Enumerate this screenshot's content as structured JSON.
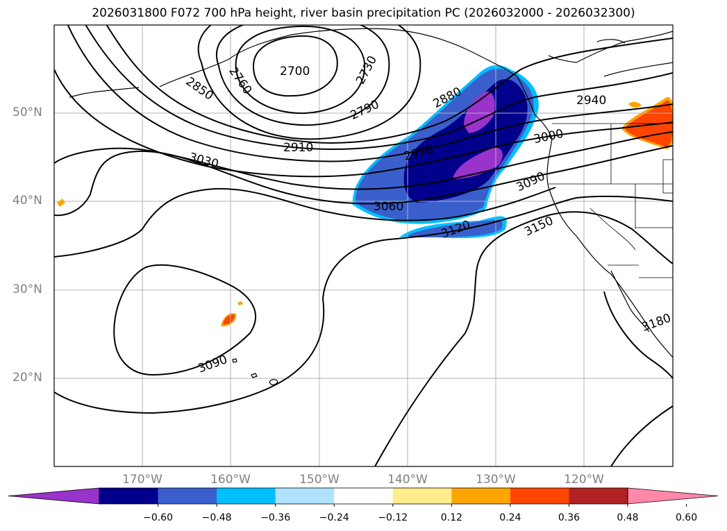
{
  "title": "2026031800 F072 700 hPa height, river basin precipitation PC (2026032000 - 2026032300)",
  "lat_labels": [
    "50°N",
    "40°N",
    "30°N",
    "20°N"
  ],
  "lon_labels": [
    "170°W",
    "160°W",
    "150°W",
    "140°W",
    "130°W",
    "120°W"
  ],
  "contour_labels": [
    "2700",
    "2730",
    "2760",
    "2790",
    "2850",
    "2880",
    "2910",
    "2940",
    "2970",
    "3000",
    "3030",
    "3060",
    "3090",
    "3090",
    "3120",
    "3150",
    "3180"
  ],
  "colorbar": {
    "colors": [
      "#9933cc",
      "#00008b",
      "#3a5fcd",
      "#00bfff",
      "#b0e2ff",
      "#ffffff",
      "#ffec8b",
      "#ffa500",
      "#ff4500",
      "#b22222",
      "#ff88aa"
    ],
    "ticks": [
      "−0.60",
      "−0.48",
      "−0.36",
      "−0.24",
      "−0.12",
      "0.12",
      "0.24",
      "0.36",
      "0.48",
      "0.60"
    ]
  }
}
